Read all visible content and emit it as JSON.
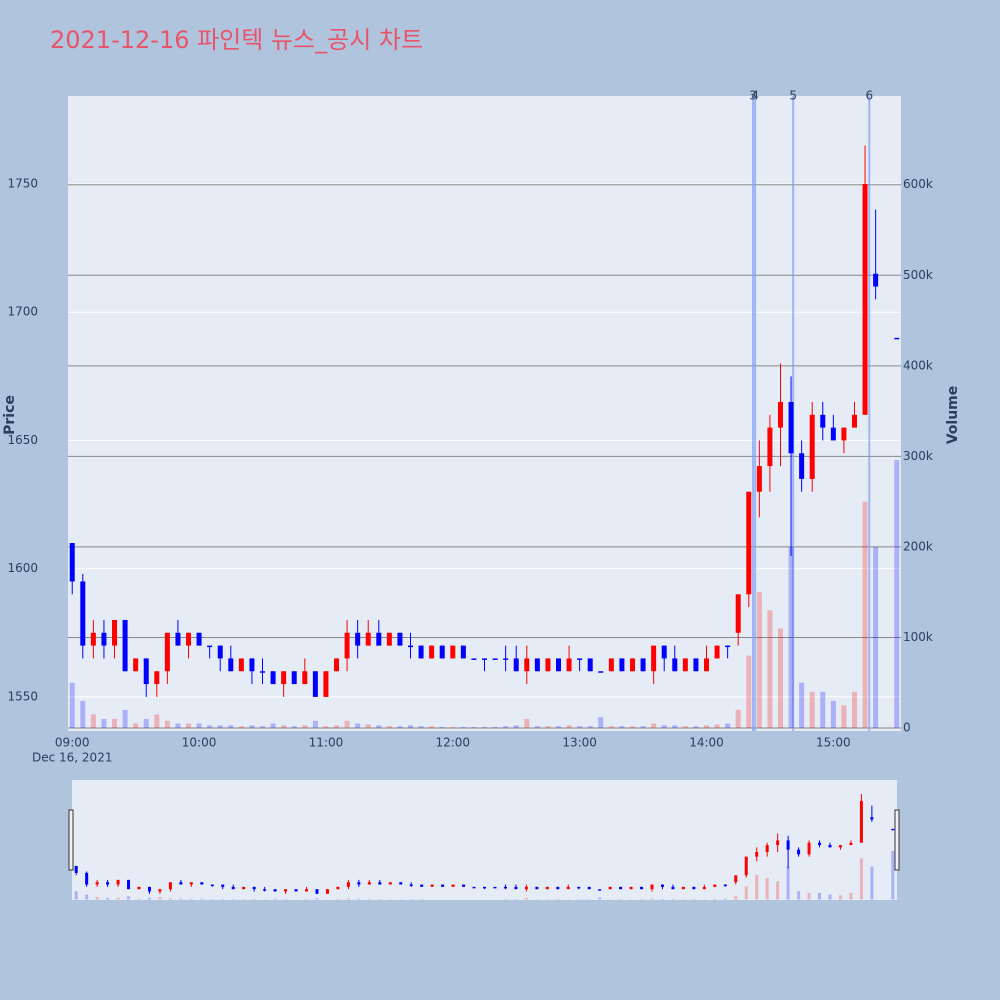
{
  "chart_data": {
    "type": "candlestick",
    "title": "2021-12-16 파인텍 뉴스_공시 차트",
    "y_label": "Price",
    "y2_label": "Volume",
    "up_color": "#ff0000",
    "down_color": "#0000ff",
    "xlim": [
      "08:58",
      "15:32"
    ],
    "xticks": [
      "09:00",
      "10:00",
      "11:00",
      "12:00",
      "13:00",
      "14:00",
      "15:00"
    ],
    "x_sublabel": "Dec 16, 2021",
    "ylim": [
      1536.7,
      1784.3
    ],
    "yticks": [
      1550,
      1600,
      1650,
      1700,
      1750
    ],
    "y2lim": [
      -3300,
      698000
    ],
    "y2ticks": [
      {
        "value": 0,
        "label": "0"
      },
      {
        "value": 100000,
        "label": "100k"
      },
      {
        "value": 200000,
        "label": "200k"
      },
      {
        "value": 300000,
        "label": "300k"
      },
      {
        "value": 400000,
        "label": "400k"
      },
      {
        "value": 500000,
        "label": "500k"
      },
      {
        "value": 600000,
        "label": "600k"
      }
    ],
    "annotations": [
      {
        "x": "14:22",
        "text": "3"
      },
      {
        "x": "14:23",
        "text": "4"
      },
      {
        "x": "14:41",
        "text": "5"
      },
      {
        "x": "15:17",
        "text": "6"
      }
    ],
    "x": [
      "09:00",
      "09:05",
      "09:10",
      "09:15",
      "09:20",
      "09:25",
      "09:30",
      "09:35",
      "09:40",
      "09:45",
      "09:50",
      "09:55",
      "10:00",
      "10:05",
      "10:10",
      "10:15",
      "10:20",
      "10:25",
      "10:30",
      "10:35",
      "10:40",
      "10:45",
      "10:50",
      "10:55",
      "11:00",
      "11:05",
      "11:10",
      "11:15",
      "11:20",
      "11:25",
      "11:30",
      "11:35",
      "11:40",
      "11:45",
      "11:50",
      "11:55",
      "12:00",
      "12:05",
      "12:10",
      "12:15",
      "12:20",
      "12:25",
      "12:30",
      "12:35",
      "12:40",
      "12:45",
      "12:50",
      "12:55",
      "13:00",
      "13:05",
      "13:10",
      "13:15",
      "13:20",
      "13:25",
      "13:30",
      "13:35",
      "13:40",
      "13:45",
      "13:50",
      "13:55",
      "14:00",
      "14:05",
      "14:10",
      "14:15",
      "14:20",
      "14:25",
      "14:30",
      "14:35",
      "14:40",
      "14:45",
      "14:50",
      "14:55",
      "15:00",
      "15:05",
      "15:10",
      "15:15",
      "15:20",
      "15:30"
    ],
    "open": [
      1610,
      1595,
      1570,
      1575,
      1570,
      1580,
      1560,
      1565,
      1555,
      1560,
      1575,
      1570,
      1575,
      1570,
      1570,
      1565,
      1560,
      1565,
      1560,
      1560,
      1555,
      1560,
      1555,
      1560,
      1550,
      1560,
      1565,
      1575,
      1570,
      1575,
      1570,
      1575,
      1570,
      1570,
      1565,
      1570,
      1565,
      1570,
      1565,
      1565,
      1565,
      1565,
      1565,
      1560,
      1565,
      1560,
      1565,
      1560,
      1565,
      1565,
      1560,
      1560,
      1565,
      1560,
      1565,
      1560,
      1570,
      1565,
      1560,
      1565,
      1560,
      1565,
      1570,
      1575,
      1590,
      1630,
      1640,
      1655,
      1665,
      1645,
      1635,
      1660,
      1655,
      1650,
      1655,
      1660,
      1715,
      1690
    ],
    "high": [
      1610,
      1598,
      1580,
      1580,
      1580,
      1580,
      1565,
      1565,
      1560,
      1575,
      1580,
      1575,
      1575,
      1570,
      1570,
      1570,
      1565,
      1565,
      1565,
      1560,
      1560,
      1560,
      1565,
      1560,
      1560,
      1565,
      1580,
      1580,
      1580,
      1580,
      1575,
      1575,
      1575,
      1570,
      1570,
      1570,
      1570,
      1570,
      1565,
      1565,
      1565,
      1570,
      1570,
      1570,
      1565,
      1565,
      1565,
      1570,
      1565,
      1565,
      1560,
      1565,
      1565,
      1565,
      1565,
      1570,
      1570,
      1570,
      1565,
      1565,
      1570,
      1570,
      1570,
      1590,
      1630,
      1650,
      1660,
      1680,
      1675,
      1650,
      1665,
      1665,
      1660,
      1655,
      1665,
      1765,
      1740,
      1690
    ],
    "low": [
      1590,
      1565,
      1565,
      1565,
      1565,
      1560,
      1560,
      1550,
      1550,
      1555,
      1570,
      1565,
      1570,
      1565,
      1560,
      1560,
      1560,
      1555,
      1555,
      1555,
      1550,
      1555,
      1555,
      1550,
      1550,
      1560,
      1560,
      1565,
      1570,
      1570,
      1570,
      1570,
      1565,
      1565,
      1565,
      1565,
      1565,
      1565,
      1565,
      1560,
      1565,
      1560,
      1560,
      1555,
      1560,
      1560,
      1560,
      1560,
      1560,
      1560,
      1560,
      1560,
      1560,
      1560,
      1560,
      1555,
      1560,
      1560,
      1560,
      1560,
      1560,
      1565,
      1565,
      1570,
      1585,
      1620,
      1630,
      1640,
      1605,
      1630,
      1630,
      1650,
      1650,
      1645,
      1655,
      1660,
      1705,
      1690
    ],
    "close": [
      1595,
      1570,
      1575,
      1570,
      1580,
      1560,
      1565,
      1555,
      1560,
      1575,
      1570,
      1575,
      1570,
      1570,
      1565,
      1560,
      1565,
      1560,
      1560,
      1555,
      1560,
      1555,
      1560,
      1550,
      1560,
      1565,
      1575,
      1570,
      1575,
      1570,
      1575,
      1570,
      1570,
      1565,
      1570,
      1565,
      1570,
      1565,
      1565,
      1565,
      1565,
      1565,
      1560,
      1565,
      1560,
      1565,
      1560,
      1565,
      1565,
      1560,
      1560,
      1565,
      1560,
      1565,
      1560,
      1570,
      1565,
      1560,
      1565,
      1560,
      1565,
      1570,
      1570,
      1590,
      1630,
      1640,
      1655,
      1665,
      1645,
      1635,
      1660,
      1655,
      1650,
      1655,
      1660,
      1750,
      1710,
      1690
    ],
    "volume": [
      50000,
      30000,
      15000,
      10000,
      10000,
      20000,
      5000,
      10000,
      15000,
      8000,
      5000,
      5000,
      5000,
      3000,
      3000,
      3000,
      2000,
      3000,
      2000,
      5000,
      3000,
      2000,
      3000,
      8000,
      2000,
      3000,
      8000,
      5000,
      4000,
      3000,
      2000,
      2000,
      3000,
      2000,
      2000,
      1000,
      1000,
      1000,
      1000,
      1000,
      1000,
      2000,
      3000,
      10000,
      2000,
      2000,
      2000,
      3000,
      2000,
      2000,
      12000,
      2000,
      2000,
      2000,
      2000,
      5000,
      3000,
      3000,
      2000,
      2000,
      3000,
      4000,
      5000,
      20000,
      80000,
      150000,
      130000,
      110000,
      200000,
      50000,
      40000,
      40000,
      30000,
      25000,
      40000,
      250000,
      200000,
      296000
    ]
  }
}
